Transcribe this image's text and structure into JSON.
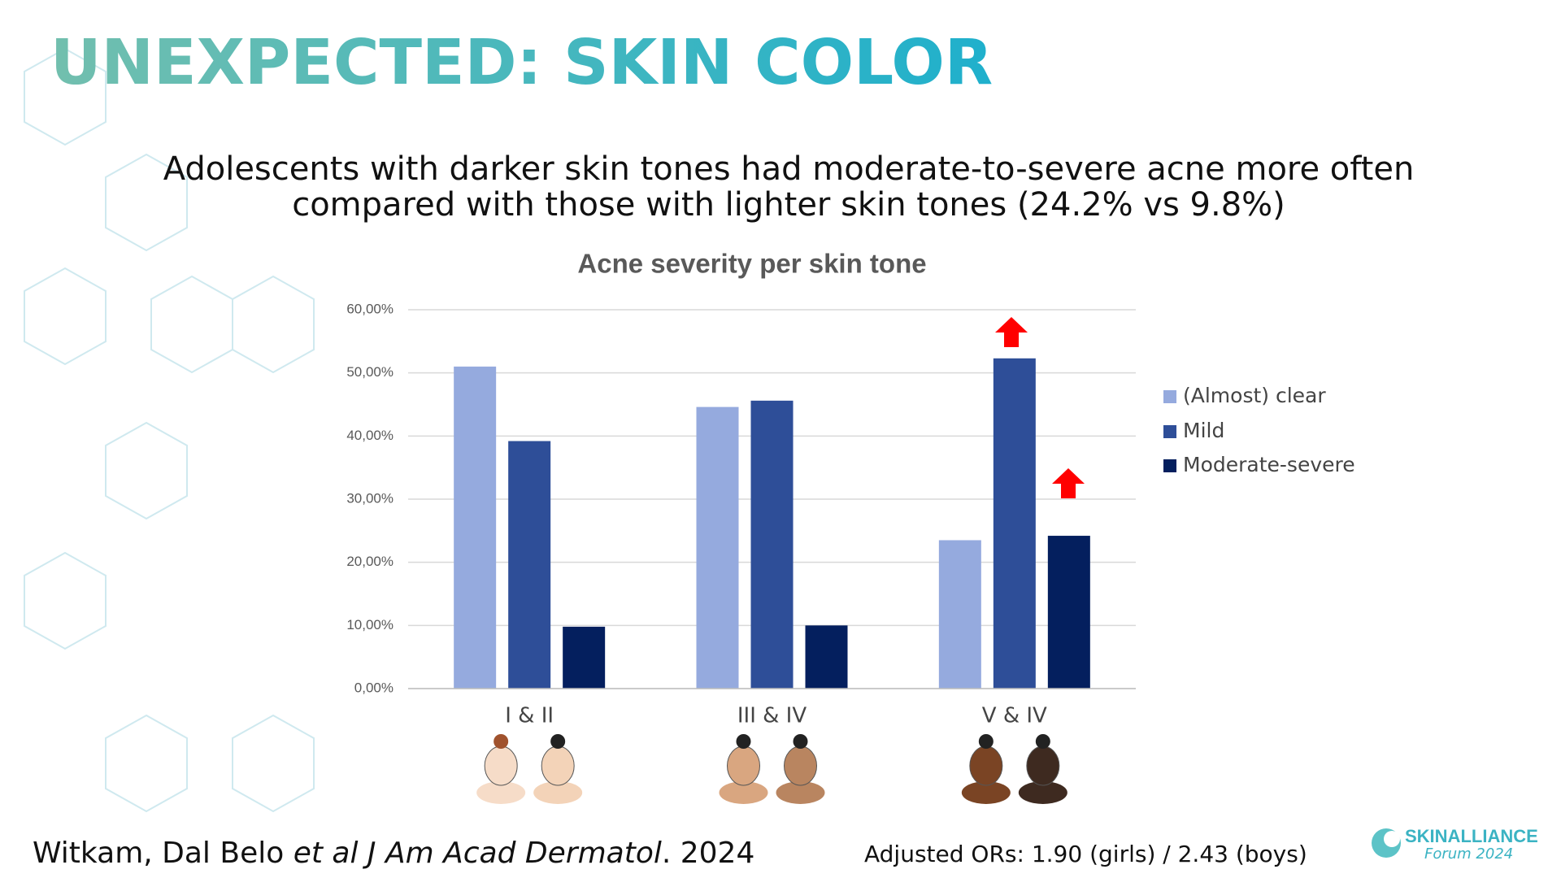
{
  "slide": {
    "title": "UNEXPECTED: SKIN COLOR",
    "subtitle": [
      "Adolescents with darker skin tones had moderate-to-severe acne more often",
      "compared with those with lighter skin tones (24.2% vs 9.8%)"
    ],
    "citation": [
      "Witkam, Dal Belo ",
      "et al",
      " J Am Acad Dermatol",
      ". 2024"
    ],
    "note": "Adjusted ORs: 1.90 (girls) / 2.43 (boys)",
    "logo": [
      "SKINALLIANCE",
      "Forum 2024"
    ]
  },
  "chart_data": {
    "type": "bar",
    "title": "Acne severity per skin tone",
    "categories": [
      "I & II",
      "III & IV",
      "V & IV"
    ],
    "series": [
      {
        "name": "(Almost) clear",
        "color": "#95aade",
        "values": [
          51.0,
          44.6,
          23.5
        ]
      },
      {
        "name": "Mild",
        "color": "#2e4e98",
        "values": [
          39.2,
          45.6,
          52.3
        ]
      },
      {
        "name": "Moderate-severe",
        "color": "#041f5e",
        "values": [
          9.8,
          10.0,
          24.2
        ]
      }
    ],
    "ylim": [
      0,
      60
    ],
    "yticks": [
      {
        "value": 0,
        "label": "0,00%"
      },
      {
        "value": 10,
        "label": "10,00%"
      },
      {
        "value": 20,
        "label": "20,00%"
      },
      {
        "value": 30,
        "label": "30,00%"
      },
      {
        "value": 40,
        "label": "40,00%"
      },
      {
        "value": 50,
        "label": "50,00%"
      },
      {
        "value": 60,
        "label": "60,00%"
      }
    ],
    "grid": true,
    "legend": "right"
  }
}
